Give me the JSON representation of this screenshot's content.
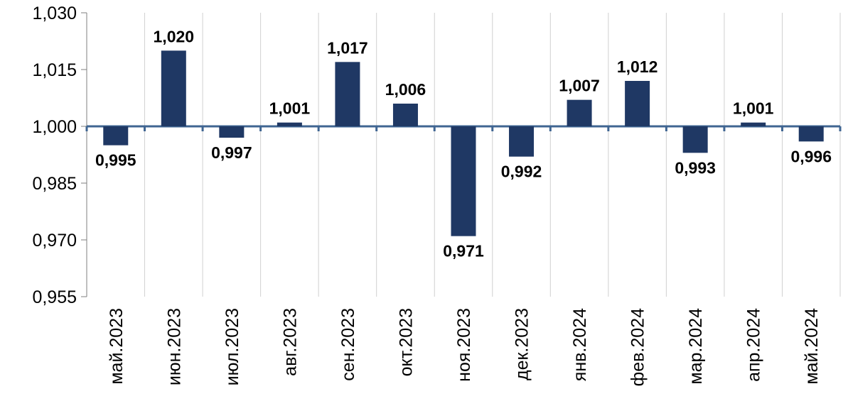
{
  "chart_data": {
    "type": "bar",
    "title": "",
    "xlabel": "",
    "ylabel": "",
    "categories": [
      "май.2023",
      "июн.2023",
      "июл.2023",
      "авг.2023",
      "сен.2023",
      "окт.2023",
      "ноя.2023",
      "дек.2023",
      "янв.2024",
      "фев.2024",
      "мар.2024",
      "апр.2024",
      "май.2024"
    ],
    "values": [
      0.995,
      1.02,
      0.997,
      1.001,
      1.017,
      1.006,
      0.971,
      0.992,
      1.007,
      1.012,
      0.993,
      1.001,
      0.996
    ],
    "value_labels": [
      "0,995",
      "1,020",
      "0,997",
      "1,001",
      "1,017",
      "1,006",
      "0,971",
      "0,992",
      "1,007",
      "1,012",
      "0,993",
      "1,001",
      "0,996"
    ],
    "ylim": [
      0.955,
      1.03
    ],
    "yticks": [
      0.955,
      0.97,
      0.985,
      1.0,
      1.015,
      1.03
    ],
    "ytick_labels": [
      "0,955",
      "0,970",
      "0,985",
      "1,000",
      "1,015",
      "1,030"
    ],
    "baseline": 1.0,
    "grid": "vertical",
    "legend": "none",
    "colors": {
      "bar": "#1f3864",
      "baseline": "#3f6592",
      "grid": "#d0d0d0",
      "axis": "#7f7f7f"
    }
  }
}
